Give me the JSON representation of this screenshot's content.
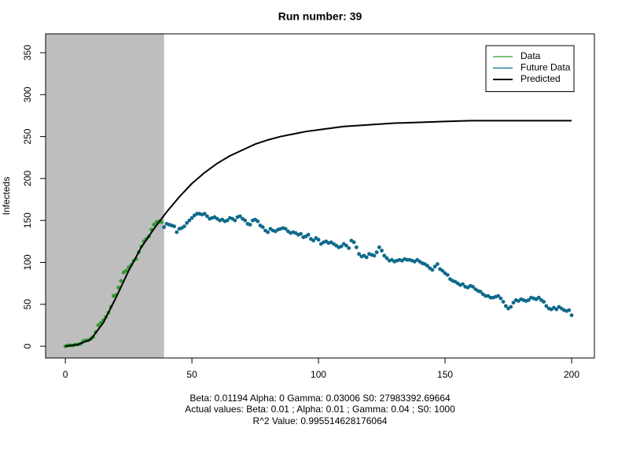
{
  "chart_data": {
    "type": "scatter",
    "title": "Run number:  39",
    "ylabel": "Infecteds",
    "notes": [
      "Beta:  0.01194 Alpha:  0 Gamma:  0.03006 S0:  27983392.69664",
      "Actual values: Beta:  0.01  ; Alpha:  0.01  ; Gamma:  0.04  ; S0:  1000",
      "R^2 Value:  0.995514628176064"
    ],
    "xlim": [
      -7.8,
      209
    ],
    "ylim": [
      -14,
      372.5
    ],
    "xticks": [
      0,
      50,
      100,
      150,
      200
    ],
    "yticks": [
      0,
      50,
      100,
      150,
      200,
      250,
      300,
      350
    ],
    "shaded_until": 39,
    "shade_color": "#bebebe",
    "legend": "top-right",
    "series": [
      {
        "name": "Data",
        "color": "#2e9a2e",
        "style": "points",
        "x": [
          0,
          1,
          2,
          3,
          4,
          5,
          6,
          7,
          8,
          9,
          10,
          11,
          12,
          13,
          14,
          15,
          16,
          17,
          18,
          19,
          20,
          21,
          22,
          23,
          24,
          25,
          26,
          27,
          28,
          29,
          30,
          31,
          32,
          33,
          34,
          35,
          36,
          37,
          38
        ],
        "values": [
          0,
          1,
          1,
          1,
          2,
          2,
          3,
          6,
          7,
          7,
          9,
          11,
          17,
          25,
          28,
          31,
          35,
          40,
          47,
          60,
          61,
          70,
          78,
          88,
          90,
          94,
          97,
          102,
          104,
          112,
          119,
          125,
          128,
          131,
          139,
          145,
          148,
          149,
          148
        ]
      },
      {
        "name": "Future Data",
        "color": "#0f6a8a",
        "style": "points",
        "x": [
          39,
          40,
          41,
          42,
          43,
          44,
          45,
          46,
          47,
          48,
          49,
          50,
          51,
          52,
          53,
          54,
          55,
          56,
          57,
          58,
          59,
          60,
          61,
          62,
          63,
          64,
          65,
          66,
          67,
          68,
          69,
          70,
          71,
          72,
          73,
          74,
          75,
          76,
          77,
          78,
          79,
          80,
          81,
          82,
          83,
          84,
          85,
          86,
          87,
          88,
          89,
          90,
          91,
          92,
          93,
          94,
          95,
          96,
          97,
          98,
          99,
          100,
          101,
          102,
          103,
          104,
          105,
          106,
          107,
          108,
          109,
          110,
          111,
          112,
          113,
          114,
          115,
          116,
          117,
          118,
          119,
          120,
          121,
          122,
          123,
          124,
          125,
          126,
          127,
          128,
          129,
          130,
          131,
          132,
          133,
          134,
          135,
          136,
          137,
          138,
          139,
          140,
          141,
          142,
          143,
          144,
          145,
          146,
          147,
          148,
          149,
          150,
          151,
          152,
          153,
          154,
          155,
          156,
          157,
          158,
          159,
          160,
          161,
          162,
          163,
          164,
          165,
          166,
          167,
          168,
          169,
          170,
          171,
          172,
          173,
          174,
          175,
          176,
          177,
          178,
          179,
          180,
          181,
          182,
          183,
          184,
          185,
          186,
          187,
          188,
          189,
          190,
          191,
          192,
          193,
          194,
          195,
          196,
          197,
          198,
          199,
          200
        ],
        "values": [
          142,
          146,
          145,
          144,
          143,
          136,
          140,
          141,
          143,
          147,
          150,
          153,
          156,
          158,
          158,
          157,
          158,
          155,
          152,
          153,
          154,
          152,
          150,
          151,
          149,
          150,
          153,
          152,
          150,
          154,
          155,
          152,
          150,
          146,
          145,
          150,
          151,
          149,
          144,
          142,
          138,
          136,
          140,
          138,
          137,
          139,
          140,
          141,
          140,
          137,
          135,
          136,
          135,
          133,
          134,
          130,
          131,
          133,
          128,
          126,
          129,
          127,
          122,
          124,
          125,
          123,
          124,
          122,
          120,
          118,
          119,
          122,
          120,
          117,
          126,
          124,
          118,
          110,
          107,
          108,
          106,
          110,
          109,
          108,
          112,
          118,
          114,
          108,
          105,
          102,
          103,
          101,
          102,
          103,
          102,
          104,
          103,
          103,
          102,
          101,
          103,
          101,
          99,
          98,
          96,
          93,
          91,
          95,
          98,
          92,
          90,
          87,
          85,
          80,
          78,
          77,
          75,
          73,
          74,
          71,
          70,
          72,
          71,
          68,
          66,
          65,
          62,
          60,
          60,
          58,
          58,
          59,
          60,
          57,
          53,
          48,
          45,
          47,
          52,
          55,
          54,
          56,
          55,
          54,
          55,
          58,
          57,
          56,
          58,
          55,
          53,
          48,
          45,
          44,
          46,
          44,
          47,
          45,
          43,
          42,
          43,
          37
        ]
      },
      {
        "name": "Predicted",
        "color": "#000000",
        "style": "line",
        "x": [
          0,
          5,
          10,
          15,
          20,
          25,
          30,
          35,
          40,
          45,
          50,
          55,
          60,
          65,
          70,
          75,
          80,
          85,
          90,
          95,
          100,
          110,
          120,
          130,
          140,
          150,
          160,
          170,
          180,
          190,
          200
        ],
        "values": [
          0,
          2,
          8,
          28,
          58,
          90,
          118,
          140,
          160,
          178,
          194,
          207,
          218,
          227,
          234,
          241,
          246,
          250,
          253,
          256,
          258,
          262,
          264,
          266,
          267,
          268,
          269,
          269,
          269,
          269,
          269
        ]
      }
    ]
  }
}
